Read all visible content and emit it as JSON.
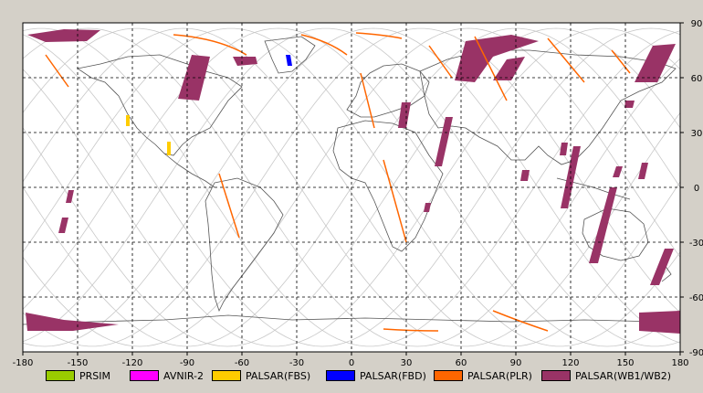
{
  "map": {
    "lon_range": [
      -180,
      180
    ],
    "lat_range": [
      -90,
      90
    ],
    "lon_ticks": [
      "-180",
      "-150",
      "-120",
      "-90",
      "-60",
      "-30",
      "0",
      "30",
      "60",
      "90",
      "120",
      "150",
      "180"
    ],
    "lat_ticks": [
      "90",
      "60",
      "30",
      "0",
      "-30",
      "-60",
      "-90"
    ],
    "colors": {
      "background": "#ffffff",
      "grid": "#000000",
      "coastline": "#555555",
      "orbit": "#c8c8c8"
    }
  },
  "legend": [
    {
      "label": "PRSIM",
      "color": "#99cc00"
    },
    {
      "label": "AVNIR-2",
      "color": "#ff00ff"
    },
    {
      "label": "PALSAR(FBS)",
      "color": "#ffcc00"
    },
    {
      "label": "PALSAR(FBD)",
      "color": "#0000ff"
    },
    {
      "label": "PALSAR(PLR)",
      "color": "#ff6600"
    },
    {
      "label": "PALSAR(WB1/WB2)",
      "color": "#993366"
    }
  ]
}
